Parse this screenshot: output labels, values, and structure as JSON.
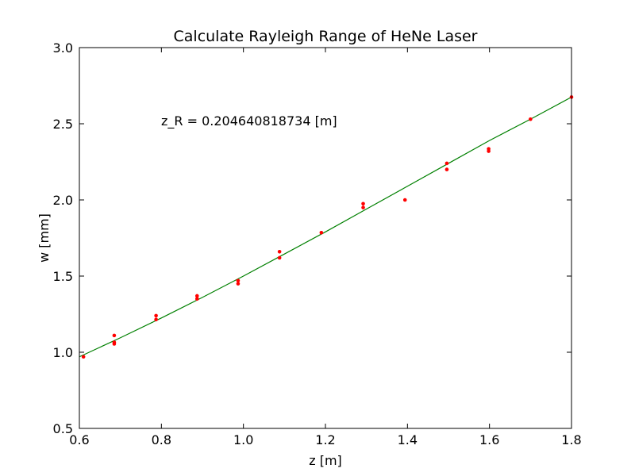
{
  "chart_data": {
    "type": "scatter",
    "title": "Calculate Rayleigh Range of HeNe Laser",
    "xlabel": "z [m]",
    "ylabel": "w [mm]",
    "xlim": [
      0.6,
      1.8
    ],
    "ylim": [
      0.5,
      3.0
    ],
    "xticks": [
      0.6,
      0.8,
      1.0,
      1.2,
      1.4,
      1.6,
      1.8
    ],
    "yticks": [
      0.5,
      1.0,
      1.5,
      2.0,
      2.5,
      3.0
    ],
    "xtick_labels": [
      "0.6",
      "0.8",
      "1.0",
      "1.2",
      "1.4",
      "1.6",
      "1.8"
    ],
    "ytick_labels": [
      "0.5",
      "1.0",
      "1.5",
      "2.0",
      "2.5",
      "3.0"
    ],
    "grid": false,
    "annotation": "z_R = 0.204640818734 [m]",
    "series": [
      {
        "kind": "points",
        "color": "#ff0000",
        "x": [
          0.61,
          0.685,
          0.685,
          0.685,
          0.787,
          0.787,
          0.887,
          0.887,
          0.987,
          0.987,
          1.088,
          1.088,
          1.19,
          1.292,
          1.292,
          1.394,
          1.496,
          1.496,
          1.598,
          1.598,
          1.7,
          1.8
        ],
        "y": [
          0.97,
          1.11,
          1.065,
          1.055,
          1.24,
          1.215,
          1.37,
          1.35,
          1.47,
          1.45,
          1.66,
          1.62,
          1.785,
          1.975,
          1.95,
          2.0,
          2.24,
          2.2,
          2.335,
          2.32,
          2.53,
          2.675
        ]
      },
      {
        "kind": "fit-line",
        "color": "#008000",
        "x": [
          0.6,
          0.7,
          0.8,
          0.9,
          1.0,
          1.1,
          1.2,
          1.3,
          1.4,
          1.5,
          1.6,
          1.7,
          1.8
        ],
        "y": [
          0.97,
          1.095,
          1.225,
          1.36,
          1.5,
          1.645,
          1.79,
          1.94,
          2.09,
          2.24,
          2.39,
          2.53,
          2.675
        ]
      }
    ]
  }
}
